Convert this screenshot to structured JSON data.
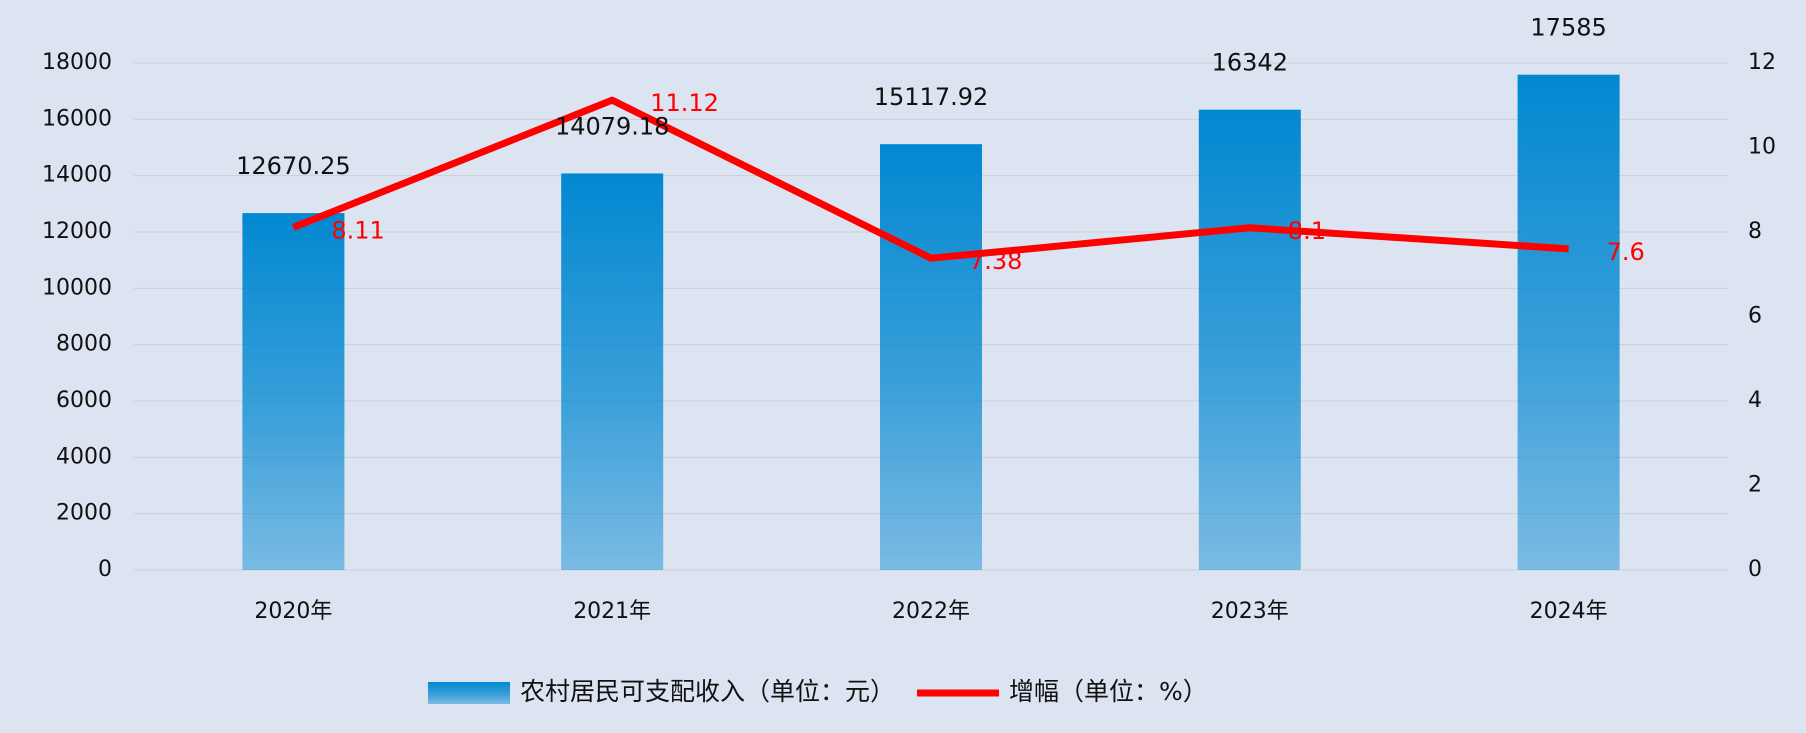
{
  "chart_data": {
    "type": "bar",
    "categories": [
      "2020年",
      "2021年",
      "2022年",
      "2023年",
      "2024年"
    ],
    "series": [
      {
        "name": "农村居民可支配收入（单位：元）",
        "type": "bar",
        "color": "#0288d1",
        "values": [
          12670.25,
          14079.18,
          15117.92,
          16342,
          17585
        ]
      },
      {
        "name": "增幅（单位：%）",
        "type": "line",
        "axis": "y2",
        "color": "#ff0000",
        "values": [
          8.11,
          11.12,
          7.38,
          8.1,
          7.6
        ]
      }
    ],
    "ylim": [
      0,
      18000
    ],
    "yticks": [
      0,
      2000,
      4000,
      6000,
      8000,
      10000,
      12000,
      14000,
      16000,
      18000
    ],
    "y2lim": [
      0,
      12
    ],
    "y2ticks": [
      0,
      2,
      4,
      6,
      8,
      10,
      12
    ],
    "grid": true,
    "legend": "bottom"
  }
}
